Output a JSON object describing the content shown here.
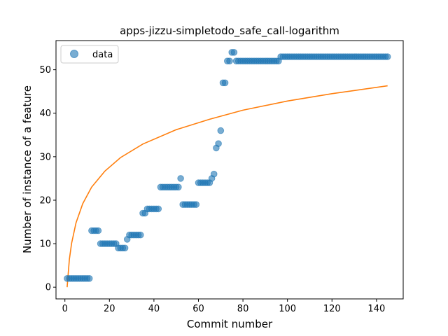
{
  "chart_data": {
    "type": "scatter",
    "title": "apps-jizzu-simpletodo_safe_call-logarithm",
    "xlabel": "Commit number",
    "ylabel": "Number of instance of a feature",
    "xlim": [
      -4,
      152
    ],
    "ylim": [
      -2.7,
      56.7
    ],
    "xticks": [
      0,
      20,
      40,
      60,
      80,
      100,
      120,
      140
    ],
    "yticks": [
      0,
      10,
      20,
      30,
      40,
      50
    ],
    "xtick_labels": [
      "0",
      "20",
      "40",
      "60",
      "80",
      "100",
      "120",
      "140"
    ],
    "ytick_labels": [
      "0",
      "10",
      "20",
      "30",
      "40",
      "50"
    ],
    "legend": {
      "placement": "top-left",
      "entries": [
        "data"
      ]
    },
    "grid": false,
    "colors": {
      "data": "#1f77b4",
      "fit": "#ff7f0e"
    },
    "series": [
      {
        "name": "data",
        "kind": "points",
        "x": [
          1,
          2,
          3,
          4,
          5,
          6,
          7,
          8,
          9,
          10,
          11,
          12,
          13,
          14,
          15,
          16,
          17,
          18,
          19,
          20,
          21,
          22,
          23,
          24,
          25,
          26,
          27,
          28,
          29,
          30,
          31,
          32,
          33,
          34,
          35,
          36,
          37,
          38,
          39,
          40,
          41,
          42,
          43,
          44,
          45,
          46,
          47,
          48,
          49,
          50,
          51,
          52,
          53,
          54,
          55,
          56,
          57,
          58,
          59,
          60,
          61,
          62,
          63,
          64,
          65,
          66,
          67,
          68,
          69,
          70,
          71,
          72,
          73,
          74,
          75,
          76,
          77,
          78,
          79,
          80,
          81,
          82,
          83,
          84,
          85,
          86,
          87,
          88,
          89,
          90,
          91,
          92,
          93,
          94,
          95,
          96,
          97,
          98,
          99,
          100,
          101,
          102,
          103,
          104,
          105,
          106,
          107,
          108,
          109,
          110,
          111,
          112,
          113,
          114,
          115,
          116,
          117,
          118,
          119,
          120,
          121,
          122,
          123,
          124,
          125,
          126,
          127,
          128,
          129,
          130,
          131,
          132,
          133,
          134,
          135,
          136,
          137,
          138,
          139,
          140,
          141,
          142,
          143,
          144,
          145
        ],
        "y": [
          2,
          2,
          2,
          2,
          2,
          2,
          2,
          2,
          2,
          2,
          2,
          13,
          13,
          13,
          13,
          10,
          10,
          10,
          10,
          10,
          10,
          10,
          10,
          9,
          9,
          9,
          9,
          11,
          12,
          12,
          12,
          12,
          12,
          12,
          17,
          17,
          18,
          18,
          18,
          18,
          18,
          18,
          23,
          23,
          23,
          23,
          23,
          23,
          23,
          23,
          23,
          25,
          19,
          19,
          19,
          19,
          19,
          19,
          19,
          24,
          24,
          24,
          24,
          24,
          24,
          25,
          26,
          32,
          33,
          36,
          47,
          47,
          52,
          52,
          54,
          54,
          52,
          52,
          52,
          52,
          52,
          52,
          52,
          52,
          52,
          52,
          52,
          52,
          52,
          52,
          52,
          52,
          52,
          52,
          52,
          52,
          53,
          53,
          53,
          53,
          53,
          53,
          53,
          53,
          53,
          53,
          53,
          53,
          53,
          53,
          53,
          53,
          53,
          53,
          53,
          53,
          53,
          53,
          53,
          53,
          53,
          53,
          53,
          53,
          53,
          53,
          53,
          53,
          53,
          53,
          53,
          53,
          53,
          53,
          53,
          53,
          53,
          53,
          53,
          53,
          53,
          53,
          53,
          53,
          53
        ]
      },
      {
        "kind": "line",
        "fit": "logarithmic",
        "x": [
          1,
          2,
          3,
          5,
          8,
          12,
          18,
          25,
          35,
          50,
          65,
          80,
          100,
          120,
          145
        ],
        "y": [
          0,
          6.4,
          10.1,
          14.8,
          19.2,
          23.0,
          26.7,
          29.8,
          32.9,
          36.2,
          38.6,
          40.7,
          42.8,
          44.5,
          46.3
        ]
      }
    ]
  }
}
